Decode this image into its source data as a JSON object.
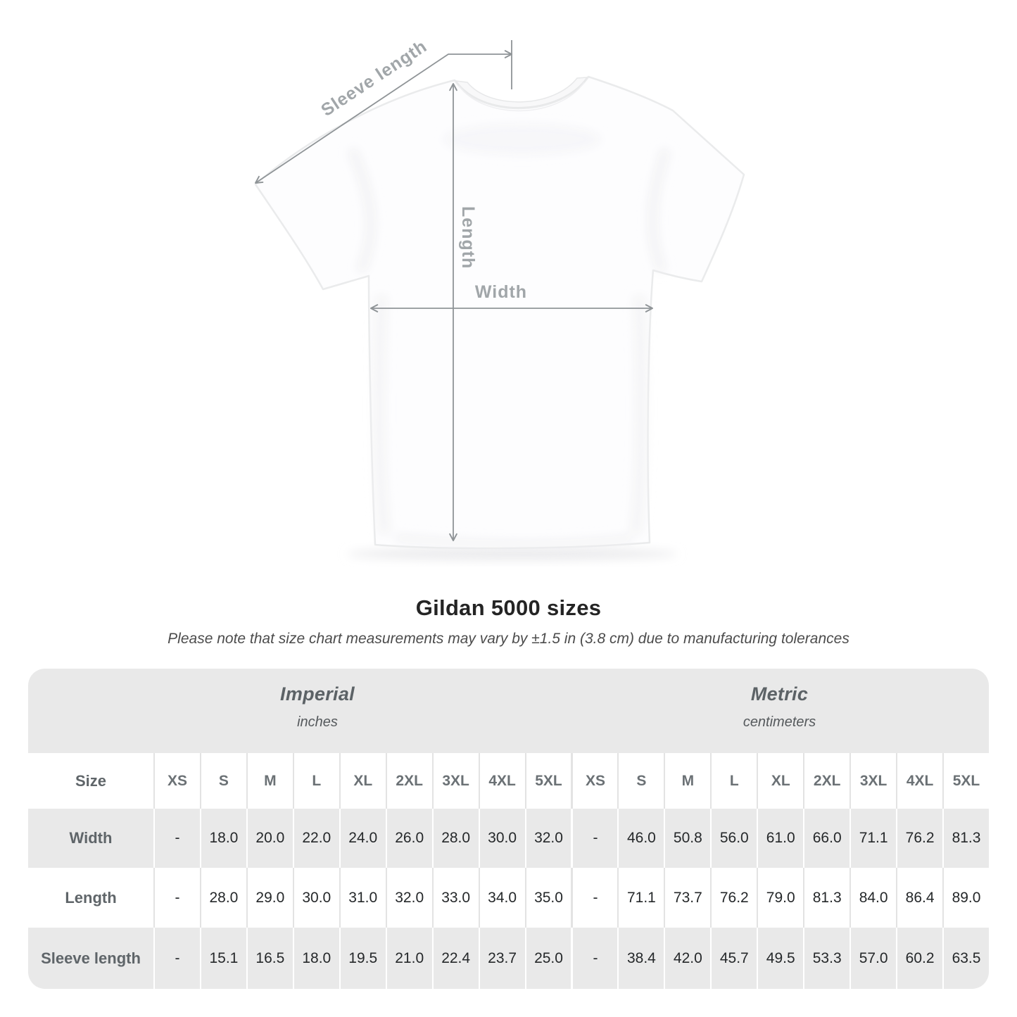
{
  "diagram": {
    "sleeve_label": "Sleeve length",
    "length_label": "Length",
    "width_label": "Width"
  },
  "title": "Gildan 5000 sizes",
  "subtitle": "Please note that size chart measurements may vary by ±1.5 in (3.8 cm) due to manufacturing tolerances",
  "chart_data": {
    "type": "table",
    "title": "Gildan 5000 sizes",
    "size_column_header": "Size",
    "groups": [
      {
        "label": "Imperial",
        "unit": "inches"
      },
      {
        "label": "Metric",
        "unit": "centimeters"
      }
    ],
    "sizes": [
      "XS",
      "S",
      "M",
      "L",
      "XL",
      "2XL",
      "3XL",
      "4XL",
      "5XL"
    ],
    "rows": [
      {
        "label": "Width",
        "imperial": [
          "-",
          "18.0",
          "20.0",
          "22.0",
          "24.0",
          "26.0",
          "28.0",
          "30.0",
          "32.0"
        ],
        "metric": [
          "-",
          "46.0",
          "50.8",
          "56.0",
          "61.0",
          "66.0",
          "71.1",
          "76.2",
          "81.3"
        ]
      },
      {
        "label": "Length",
        "imperial": [
          "-",
          "28.0",
          "29.0",
          "30.0",
          "31.0",
          "32.0",
          "33.0",
          "34.0",
          "35.0"
        ],
        "metric": [
          "-",
          "71.1",
          "73.7",
          "76.2",
          "79.0",
          "81.3",
          "84.0",
          "86.4",
          "89.0"
        ]
      },
      {
        "label": "Sleeve length",
        "imperial": [
          "-",
          "15.1",
          "16.5",
          "18.0",
          "19.5",
          "21.0",
          "22.4",
          "23.7",
          "25.0"
        ],
        "metric": [
          "-",
          "38.4",
          "42.0",
          "45.7",
          "49.5",
          "53.3",
          "57.0",
          "60.2",
          "63.5"
        ]
      }
    ]
  }
}
